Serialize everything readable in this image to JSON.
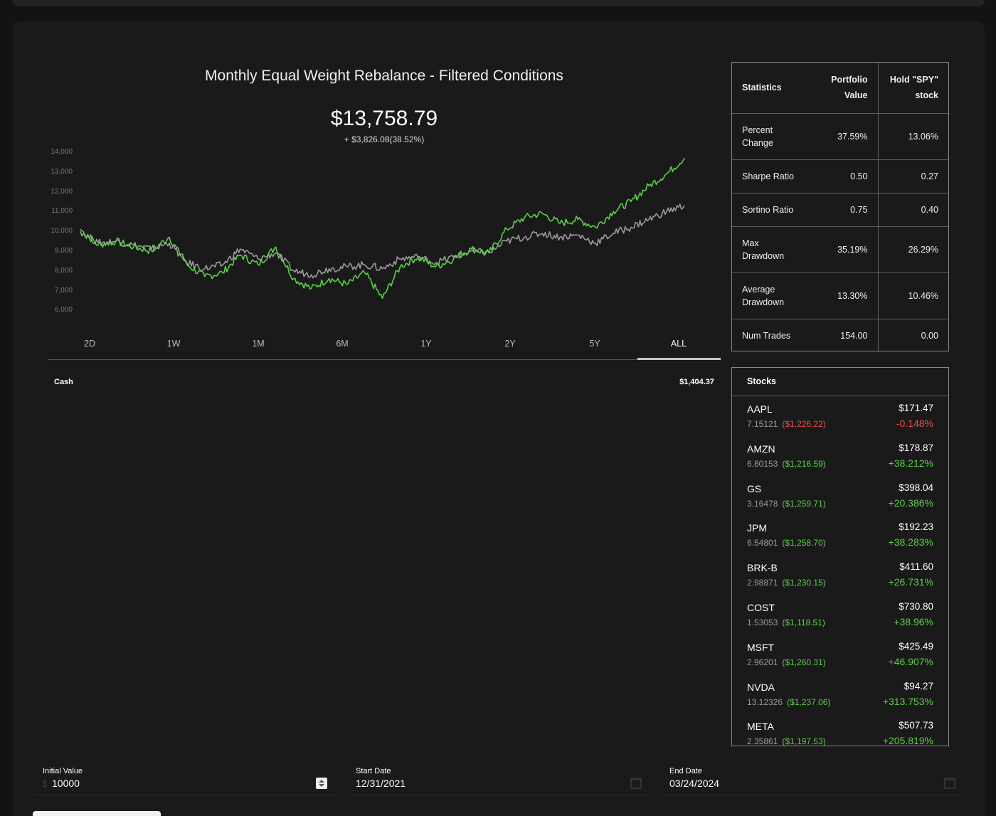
{
  "chart": {
    "title": "Monthly Equal Weight Rebalance - Filtered Conditions",
    "value": "$13,758.79",
    "change": "+ $3,826.08(38.52%)",
    "y_ticks": [
      "14,000",
      "13,000",
      "12,000",
      "11,000",
      "10,000",
      "9,000",
      "8,000",
      "7,000",
      "6,000"
    ],
    "ranges": [
      "2D",
      "1W",
      "1M",
      "6M",
      "1Y",
      "2Y",
      "5Y",
      "ALL"
    ],
    "active_range": "ALL"
  },
  "chart_data": {
    "type": "line",
    "title": "Monthly Equal Weight Rebalance - Filtered Conditions",
    "xlabel": "",
    "ylabel": "",
    "ylim": [
      6000,
      14000
    ],
    "grid": false,
    "series": [
      {
        "color": "#5ccf4a",
        "values": [
          10100,
          9300,
          9500,
          9200,
          9000,
          9700,
          8300,
          7700,
          7900,
          8800,
          8300,
          9200,
          7600,
          7100,
          7600,
          7300,
          7900,
          6600,
          8200,
          8700,
          8200,
          8600,
          9100,
          8900,
          10100,
          10700,
          10900,
          10400,
          10600,
          10200,
          11000,
          11500,
          12300,
          12900,
          13700
        ]
      },
      {
        "color": "#9a9a9a",
        "values": [
          10000,
          9400,
          9500,
          9300,
          9100,
          9400,
          8400,
          8100,
          8300,
          9100,
          8600,
          8900,
          8000,
          7800,
          8100,
          8200,
          8300,
          8100,
          8600,
          8700,
          8400,
          8700,
          9000,
          8900,
          9500,
          9700,
          9900,
          9700,
          9800,
          9400,
          9900,
          10200,
          10600,
          11000,
          11300
        ]
      }
    ]
  },
  "cash": {
    "label": "Cash",
    "value": "$1,404.37"
  },
  "statistics": {
    "headers": [
      "Statistics",
      "Portfolio Value",
      "Hold \"SPY\" stock"
    ],
    "rows": [
      {
        "label": "Percent Change",
        "portfolio": "37.59%",
        "hold": "13.06%"
      },
      {
        "label": "Sharpe Ratio",
        "portfolio": "0.50",
        "hold": "0.27"
      },
      {
        "label": "Sortino Ratio",
        "portfolio": "0.75",
        "hold": "0.40"
      },
      {
        "label": "Max Drawdown",
        "portfolio": "35.19%",
        "hold": "26.29%"
      },
      {
        "label": "Average Drawdown",
        "portfolio": "13.30%",
        "hold": "10.46%"
      },
      {
        "label": "Num Trades",
        "portfolio": "154.00",
        "hold": "0.00"
      }
    ]
  },
  "stocks": {
    "title": "Stocks",
    "items": [
      {
        "symbol": "AAPL",
        "shares": "7.15121",
        "amount": "($1,226.22)",
        "price": "$171.47",
        "change": "-0.148%",
        "negative": true
      },
      {
        "symbol": "AMZN",
        "shares": "6.80153",
        "amount": "($1,216.59)",
        "price": "$178.87",
        "change": "+38.212%",
        "negative": false
      },
      {
        "symbol": "GS",
        "shares": "3.16478",
        "amount": "($1,259.71)",
        "price": "$398.04",
        "change": "+20.386%",
        "negative": false
      },
      {
        "symbol": "JPM",
        "shares": "6.54801",
        "amount": "($1,258.70)",
        "price": "$192.23",
        "change": "+38.283%",
        "negative": false
      },
      {
        "symbol": "BRK-B",
        "shares": "2.98871",
        "amount": "($1,230.15)",
        "price": "$411.60",
        "change": "+26.731%",
        "negative": false
      },
      {
        "symbol": "COST",
        "shares": "1.53053",
        "amount": "($1,118.51)",
        "price": "$730.80",
        "change": "+38.96%",
        "negative": false
      },
      {
        "symbol": "MSFT",
        "shares": "2.96201",
        "amount": "($1,260.31)",
        "price": "$425.49",
        "change": "+46.907%",
        "negative": false
      },
      {
        "symbol": "NVDA",
        "shares": "13.12326",
        "amount": "($1,237.06)",
        "price": "$94.27",
        "change": "+313.753%",
        "negative": false
      },
      {
        "symbol": "META",
        "shares": "2.35861",
        "amount": "($1,197.53)",
        "price": "$507.73",
        "change": "+205.819%",
        "negative": false
      }
    ]
  },
  "inputs": {
    "initial_value": {
      "label": "Initial Value",
      "prefix": "$",
      "value": "10000"
    },
    "start_date": {
      "label": "Start Date",
      "value": "12/31/2021"
    },
    "end_date": {
      "label": "End Date",
      "value": "03/24/2024"
    }
  }
}
